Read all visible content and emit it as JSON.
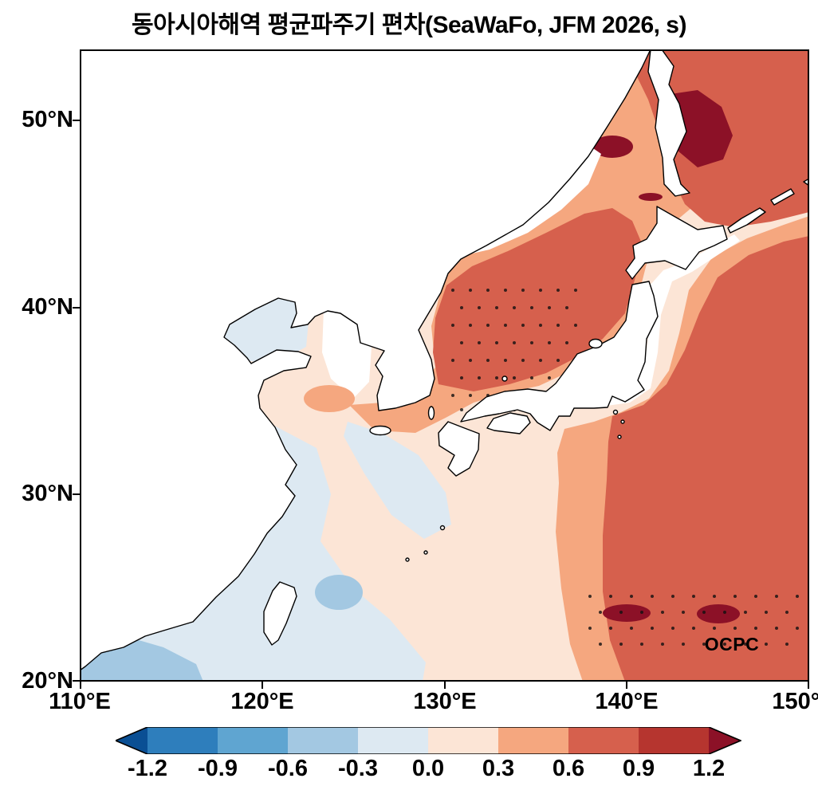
{
  "title": "동아시아해역 평균파주기 편차(SeaWaFo, JFM 2026, s)",
  "watermark": "OCPC",
  "axes": {
    "y_ticks": [
      "50°N",
      "40°N",
      "30°N",
      "20°N"
    ],
    "x_ticks": [
      "110°E",
      "120°E",
      "130°E",
      "140°E",
      "150°E"
    ]
  },
  "colorbar": {
    "tick_labels": [
      "-1.2",
      "-0.9",
      "-0.6",
      "-0.3",
      "0.0",
      "0.3",
      "0.6",
      "0.9",
      "1.2"
    ],
    "all_colors": [
      "#0a4f94",
      "#2e7ebc",
      "#5fa5d1",
      "#a3c8e2",
      "#dde9f2",
      "#fce5d6",
      "#f5a77f",
      "#d6604d",
      "#b6352f",
      "#8c1127"
    ]
  },
  "chart_data": {
    "type": "heatmap",
    "title": "동아시아해역 평균파주기 편차(SeaWaFo, JFM 2026, s)",
    "variable": "mean wave period anomaly (평균파주기 편차)",
    "model": "SeaWaFo",
    "period": "JFM 2026",
    "units": "s",
    "lon_range": [
      110,
      150
    ],
    "lat_range": [
      20,
      53.8
    ],
    "x_tick_values": [
      110,
      120,
      130,
      140,
      150
    ],
    "y_tick_values": [
      20,
      30,
      40,
      50
    ],
    "colorbar_levels": [
      -1.2,
      -0.9,
      -0.6,
      -0.3,
      0.0,
      0.3,
      0.6,
      0.9,
      1.2
    ],
    "colorbar_colors": [
      "#0a4f94",
      "#2e7ebc",
      "#5fa5d1",
      "#a3c8e2",
      "#dde9f2",
      "#fce5d6",
      "#f5a77f",
      "#d6604d",
      "#b6352f",
      "#8c1127"
    ],
    "legend_position": "bottom horizontal with triangular over/under arrows",
    "grid": false,
    "regions": [
      {
        "area": "East Sea / Sea of Japan (129-140E, 35-45N)",
        "anomaly_s": "+0.6 to +0.9",
        "stippled": true
      },
      {
        "area": "Northwest Pacific east and south of Japan (139-150E, 20-47N)",
        "anomaly_s": "+0.6 to +0.9"
      },
      {
        "area": "Sea of Okhotsk east of Sakhalin (142-146E, 47.5-51.5N)",
        "anomaly_s": "greater than +1.2"
      },
      {
        "area": "Tatar Strait patch (138-140.5E, 48-49.2N)",
        "anomaly_s": "greater than +1.2"
      },
      {
        "area": "Subtropical blobs near 23.5N at 139-141.5E and 144.5-147E",
        "anomaly_s": "greater than +1.2",
        "stippled": true
      },
      {
        "area": "Yellow Sea patch (122.5-125.5E, 34.3-36N)",
        "anomaly_s": "+0.3 to +0.6"
      },
      {
        "area": "Korea Strait and band into East Sea",
        "anomaly_s": "+0.3 to +0.6"
      },
      {
        "area": "Central East China Sea",
        "anomaly_s": "0 to +0.3"
      },
      {
        "area": "Bohai Sea and China coastal waters, SW of map",
        "anomaly_s": "-0.3 to 0"
      },
      {
        "area": "Northeast of Taiwan (123-125.5E, 23.5-26N)",
        "anomaly_s": "-0.6 to -0.3"
      },
      {
        "area": "Northern South China Sea corner (110-117E, 20-22.8N)",
        "anomaly_s": "-0.6 to -0.3"
      }
    ],
    "annotations": [
      "OCPC"
    ]
  }
}
